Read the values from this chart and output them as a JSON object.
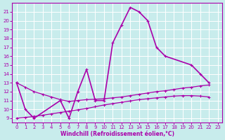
{
  "xlabel": "Windchill (Refroidissement éolien,°C)",
  "bg_color": "#c8ecec",
  "line_color": "#aa00aa",
  "grid_color": "#ffffff",
  "xlim": [
    -0.5,
    23.5
  ],
  "ylim": [
    8.5,
    22.0
  ],
  "yticks": [
    9,
    10,
    11,
    12,
    13,
    14,
    15,
    16,
    17,
    18,
    19,
    20,
    21
  ],
  "xticks": [
    0,
    1,
    2,
    3,
    4,
    5,
    6,
    7,
    8,
    9,
    10,
    11,
    12,
    13,
    14,
    15,
    16,
    17,
    18,
    19,
    20,
    21,
    22,
    23
  ],
  "curve1_x": [
    0,
    1,
    2,
    5,
    6,
    7,
    8,
    9,
    10,
    11,
    12,
    13,
    14,
    15,
    16,
    17,
    20,
    21,
    22
  ],
  "curve1_y": [
    13,
    10,
    9,
    11,
    9,
    12,
    14.5,
    11,
    11,
    17.5,
    19.5,
    21.5,
    21,
    20,
    17,
    16,
    15,
    14,
    13
  ],
  "curve2_x": [
    0,
    1,
    2,
    3,
    4,
    5,
    6,
    7,
    8,
    9,
    10,
    11,
    12,
    13,
    14,
    15,
    16,
    17,
    18,
    19,
    20,
    21,
    22
  ],
  "curve2_y": [
    9,
    9.1,
    9.2,
    9.35,
    9.5,
    9.65,
    9.8,
    9.95,
    10.1,
    10.3,
    10.5,
    10.65,
    10.8,
    10.95,
    11.1,
    11.2,
    11.3,
    11.4,
    11.5,
    11.55,
    11.55,
    11.5,
    11.4
  ],
  "curve3_x": [
    0,
    1,
    2,
    3,
    4,
    5,
    6,
    7,
    8,
    9,
    10,
    11,
    12,
    13,
    14,
    15,
    16,
    17,
    18,
    19,
    20,
    21,
    22
  ],
  "curve3_y": [
    13,
    12.5,
    12.0,
    11.7,
    11.4,
    11.1,
    10.9,
    11.0,
    11.1,
    11.15,
    11.2,
    11.3,
    11.4,
    11.55,
    11.7,
    11.85,
    12.0,
    12.1,
    12.25,
    12.4,
    12.5,
    12.65,
    12.75
  ],
  "tick_fontsize": 5,
  "xlabel_fontsize": 5.5,
  "spine_lw": 0.8,
  "line_lw1": 1.2,
  "line_lw2": 0.9,
  "marker_size": 2.8,
  "marker_ew": 0.8
}
